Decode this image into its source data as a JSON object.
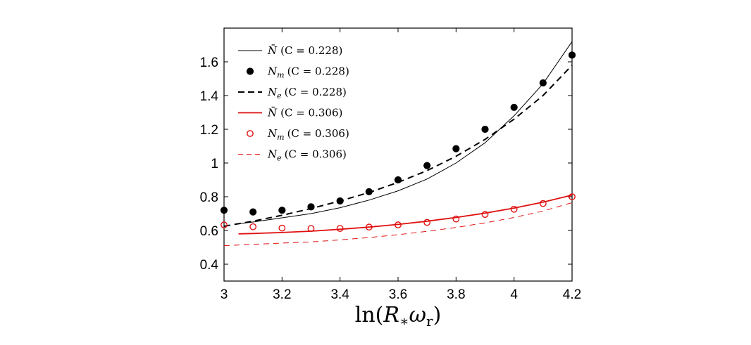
{
  "chart_data": {
    "type": "line",
    "xlabel": "ln(R∗ωr)",
    "ylabel": "",
    "title": "",
    "xlim": [
      3,
      4.2
    ],
    "ylim": [
      0.3,
      1.8
    ],
    "x_ticks": [
      "3",
      "3.2",
      "3.4",
      "3.6",
      "3.8",
      "4",
      "4.2"
    ],
    "x_tick_values": [
      3,
      3.2,
      3.4,
      3.6,
      3.8,
      4,
      4.2
    ],
    "y_ticks": [
      "0.4",
      "0.6",
      "0.8",
      "1",
      "1.2",
      "1.4",
      "1.6"
    ],
    "y_tick_values": [
      0.4,
      0.6,
      0.8,
      1,
      1.2,
      1.4,
      1.6
    ],
    "legend_position": "top-left",
    "series": [
      {
        "name": "N̄ (C = 0.228)",
        "legend_label": "N̄ (C = 0.228)",
        "color": "#000000",
        "style": "solid-line",
        "x": [
          3.05,
          3.1,
          3.2,
          3.3,
          3.4,
          3.5,
          3.6,
          3.7,
          3.8,
          3.9,
          4.0,
          4.1,
          4.2
        ],
        "y": [
          0.64,
          0.65,
          0.675,
          0.7,
          0.735,
          0.78,
          0.835,
          0.905,
          1.0,
          1.12,
          1.28,
          1.47,
          1.72
        ]
      },
      {
        "name": "Nm (C = 0.228)",
        "legend_label": "N_m (C = 0.228)",
        "color": "#000000",
        "style": "filled-marker",
        "x": [
          3.0,
          3.1,
          3.2,
          3.3,
          3.4,
          3.5,
          3.6,
          3.7,
          3.8,
          3.9,
          4.0,
          4.1,
          4.2
        ],
        "y": [
          0.72,
          0.71,
          0.72,
          0.74,
          0.775,
          0.83,
          0.9,
          0.985,
          1.085,
          1.2,
          1.33,
          1.475,
          1.64
        ]
      },
      {
        "name": "Ne (C = 0.228)",
        "legend_label": "N_e (C = 0.228)",
        "color": "#000000",
        "style": "dashed-line-thick",
        "x": [
          3.0,
          3.1,
          3.2,
          3.3,
          3.4,
          3.5,
          3.6,
          3.7,
          3.8,
          3.9,
          4.0,
          4.1,
          4.2
        ],
        "y": [
          0.625,
          0.655,
          0.69,
          0.73,
          0.775,
          0.825,
          0.885,
          0.955,
          1.04,
          1.14,
          1.26,
          1.4,
          1.58
        ]
      },
      {
        "name": "N̄ (C = 0.306)",
        "legend_label": "N̄ (C = 0.306)",
        "color": "#e01010",
        "style": "solid-line",
        "x": [
          3.05,
          3.1,
          3.2,
          3.3,
          3.4,
          3.5,
          3.6,
          3.7,
          3.8,
          3.9,
          4.0,
          4.1,
          4.2
        ],
        "y": [
          0.58,
          0.582,
          0.588,
          0.596,
          0.607,
          0.62,
          0.636,
          0.655,
          0.677,
          0.703,
          0.733,
          0.768,
          0.81
        ]
      },
      {
        "name": "Nm (C = 0.306)",
        "legend_label": "N_m (C = 0.306)",
        "color": "#e01010",
        "style": "open-marker",
        "x": [
          3.0,
          3.1,
          3.2,
          3.3,
          3.4,
          3.5,
          3.6,
          3.7,
          3.8,
          3.9,
          4.0,
          4.1,
          4.2
        ],
        "y": [
          0.633,
          0.622,
          0.614,
          0.612,
          0.612,
          0.62,
          0.633,
          0.648,
          0.668,
          0.695,
          0.726,
          0.76,
          0.8
        ]
      },
      {
        "name": "Ne (C = 0.306)",
        "legend_label": "N_e (C = 0.306)",
        "color": "#e01010",
        "style": "dashed-line-thin",
        "x": [
          3.0,
          3.1,
          3.2,
          3.3,
          3.4,
          3.5,
          3.6,
          3.7,
          3.8,
          3.9,
          4.0,
          4.1,
          4.2
        ],
        "y": [
          0.51,
          0.518,
          0.525,
          0.532,
          0.544,
          0.558,
          0.575,
          0.595,
          0.618,
          0.645,
          0.677,
          0.715,
          0.765
        ]
      }
    ]
  },
  "legend": {
    "items": [
      {
        "symbol": "N̄",
        "sub": "",
        "text": "(C = 0.228)"
      },
      {
        "symbol": "N",
        "sub": "m",
        "text": "(C = 0.228)"
      },
      {
        "symbol": "N",
        "sub": "e",
        "text": "(C = 0.228)"
      },
      {
        "symbol": "N̄",
        "sub": "",
        "text": "(C = 0.306)"
      },
      {
        "symbol": "N",
        "sub": "m",
        "text": "(C = 0.306)"
      },
      {
        "symbol": "N",
        "sub": "e",
        "text": "(C = 0.306)"
      }
    ]
  },
  "axis_title": {
    "prefix": "ln(",
    "R": "R",
    "star": "∗",
    "omega": "ω",
    "sub": "r",
    "suffix": ")"
  }
}
